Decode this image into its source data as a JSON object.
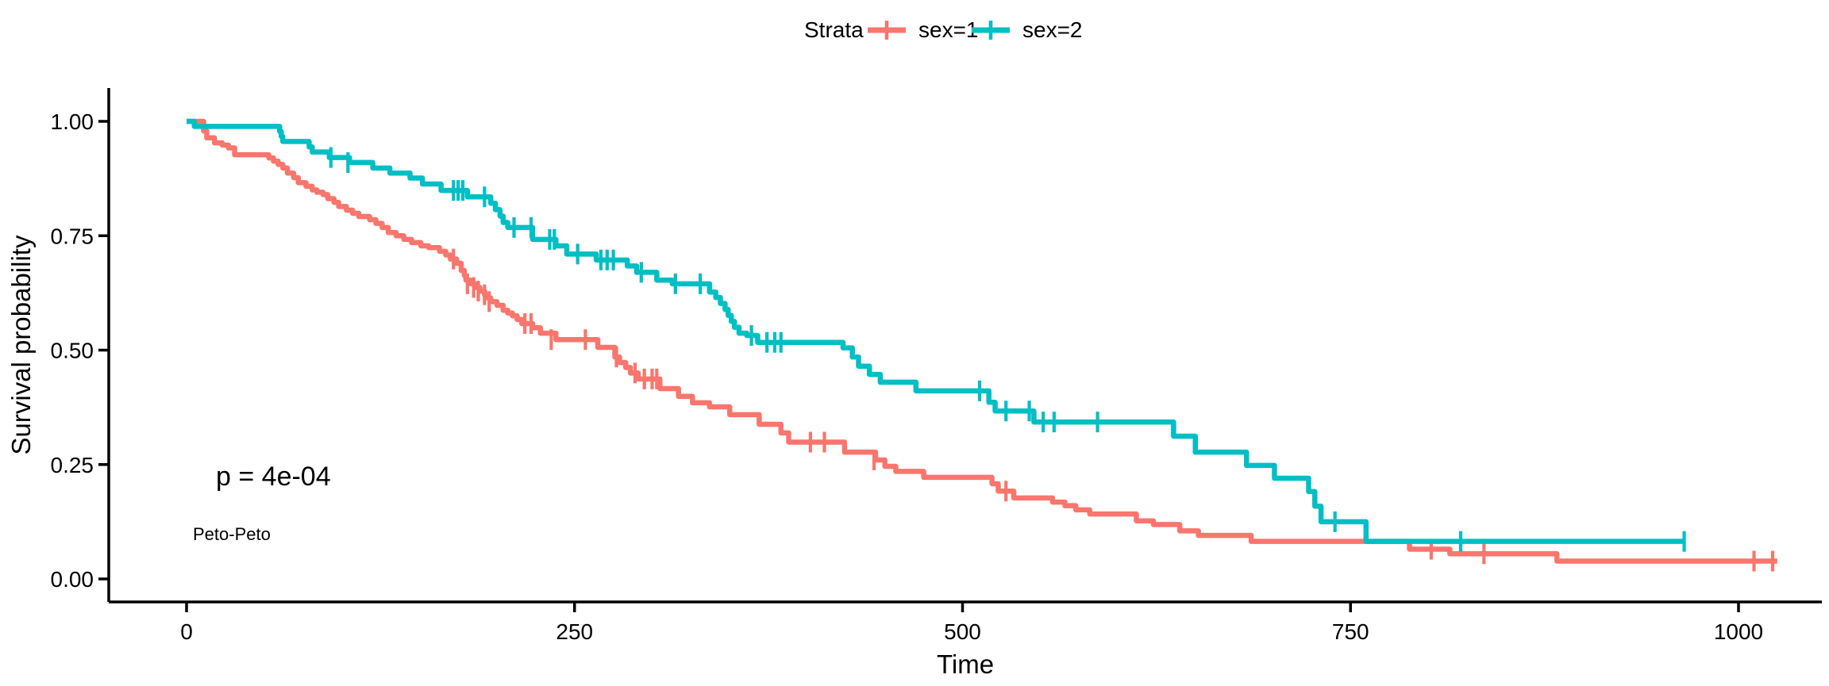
{
  "figure": {
    "legend": {
      "title": "Strata",
      "items": [
        {
          "label": "sex=1",
          "color": "#F8766D"
        },
        {
          "label": "sex=2",
          "color": "#00BFC4"
        }
      ]
    },
    "annotations": {
      "pvalue": "p = 4e-04",
      "method": "Peto-Peto"
    },
    "axes": {
      "x_label": "Time",
      "y_label": "Survival probability"
    }
  },
  "chart_data": {
    "type": "line",
    "subtype": "kaplan_meier_step_function",
    "title": "",
    "xlabel": "Time",
    "ylabel": "Survival probability",
    "xlim": [
      0,
      1060
    ],
    "ylim": [
      0,
      1
    ],
    "x_ticks": [
      0,
      250,
      500,
      750,
      1000
    ],
    "y_ticks": [
      {
        "value": 0.0,
        "label": "0.00"
      },
      {
        "value": 0.25,
        "label": "0.25"
      },
      {
        "value": 0.5,
        "label": "0.50"
      },
      {
        "value": 0.75,
        "label": "0.75"
      },
      {
        "value": 1.0,
        "label": "1.00"
      }
    ],
    "grid": false,
    "legend_position": "top",
    "legend_title": "Strata",
    "pvalue": "p = 4e-04",
    "test_method": "Peto-Peto",
    "axis_color": "#000000",
    "series": [
      {
        "name": "sex=1",
        "color": "#F8766D",
        "end_time": 1025,
        "points": [
          [
            0,
            1.0
          ],
          [
            11,
            0.979
          ],
          [
            13,
            0.964
          ],
          [
            18,
            0.953
          ],
          [
            23,
            0.948
          ],
          [
            27,
            0.942
          ],
          [
            31,
            0.927
          ],
          [
            53,
            0.92
          ],
          [
            56,
            0.913
          ],
          [
            59,
            0.906
          ],
          [
            62,
            0.898
          ],
          [
            65,
            0.887
          ],
          [
            69,
            0.877
          ],
          [
            72,
            0.866
          ],
          [
            77,
            0.858
          ],
          [
            81,
            0.85
          ],
          [
            84,
            0.845
          ],
          [
            88,
            0.84
          ],
          [
            91,
            0.831
          ],
          [
            95,
            0.823
          ],
          [
            98,
            0.814
          ],
          [
            103,
            0.806
          ],
          [
            107,
            0.799
          ],
          [
            111,
            0.792
          ],
          [
            118,
            0.785
          ],
          [
            122,
            0.777
          ],
          [
            126,
            0.768
          ],
          [
            130,
            0.757
          ],
          [
            135,
            0.75
          ],
          [
            140,
            0.742
          ],
          [
            145,
            0.735
          ],
          [
            151,
            0.728
          ],
          [
            156,
            0.724
          ],
          [
            163,
            0.716
          ],
          [
            167,
            0.708
          ],
          [
            170,
            0.699
          ],
          [
            174,
            0.69
          ],
          [
            177,
            0.674
          ],
          [
            179,
            0.663
          ],
          [
            180,
            0.653
          ],
          [
            183,
            0.645
          ],
          [
            186,
            0.637
          ],
          [
            189,
            0.629
          ],
          [
            192,
            0.621
          ],
          [
            194,
            0.614
          ],
          [
            196,
            0.606
          ],
          [
            200,
            0.598
          ],
          [
            204,
            0.587
          ],
          [
            207,
            0.581
          ],
          [
            210,
            0.575
          ],
          [
            213,
            0.567
          ],
          [
            216,
            0.558
          ],
          [
            223,
            0.549
          ],
          [
            228,
            0.537
          ],
          [
            238,
            0.523
          ],
          [
            265,
            0.506
          ],
          [
            276,
            0.485
          ],
          [
            279,
            0.473
          ],
          [
            283,
            0.462
          ],
          [
            286,
            0.45
          ],
          [
            291,
            0.437
          ],
          [
            305,
            0.416
          ],
          [
            317,
            0.399
          ],
          [
            326,
            0.385
          ],
          [
            337,
            0.376
          ],
          [
            350,
            0.359
          ],
          [
            369,
            0.338
          ],
          [
            383,
            0.319
          ],
          [
            388,
            0.299
          ],
          [
            424,
            0.277
          ],
          [
            444,
            0.26
          ],
          [
            450,
            0.246
          ],
          [
            457,
            0.235
          ],
          [
            475,
            0.222
          ],
          [
            519,
            0.208
          ],
          [
            523,
            0.192
          ],
          [
            533,
            0.177
          ],
          [
            558,
            0.168
          ],
          [
            566,
            0.16
          ],
          [
            573,
            0.151
          ],
          [
            582,
            0.142
          ],
          [
            612,
            0.127
          ],
          [
            623,
            0.119
          ],
          [
            640,
            0.105
          ],
          [
            652,
            0.095
          ],
          [
            686,
            0.082
          ],
          [
            788,
            0.065
          ],
          [
            814,
            0.055
          ],
          [
            883,
            0.039
          ]
        ],
        "censored": [
          [
            172,
            0.699
          ],
          [
            181,
            0.645
          ],
          [
            185,
            0.637
          ],
          [
            188,
            0.629
          ],
          [
            192,
            0.621
          ],
          [
            195,
            0.606
          ],
          [
            218,
            0.558
          ],
          [
            222,
            0.558
          ],
          [
            235,
            0.523
          ],
          [
            257,
            0.523
          ],
          [
            277,
            0.485
          ],
          [
            289,
            0.45
          ],
          [
            295,
            0.437
          ],
          [
            300,
            0.437
          ],
          [
            303,
            0.437
          ],
          [
            402,
            0.299
          ],
          [
            411,
            0.299
          ],
          [
            443,
            0.26
          ],
          [
            528,
            0.192
          ],
          [
            802,
            0.065
          ],
          [
            836,
            0.055
          ],
          [
            1010,
            0.039
          ],
          [
            1022,
            0.039
          ]
        ]
      },
      {
        "name": "sex=2",
        "color": "#00BFC4",
        "end_time": 965,
        "points": [
          [
            0,
            1.0
          ],
          [
            5,
            0.989
          ],
          [
            60,
            0.978
          ],
          [
            61,
            0.967
          ],
          [
            62,
            0.956
          ],
          [
            79,
            0.944
          ],
          [
            81,
            0.933
          ],
          [
            92,
            0.921
          ],
          [
            105,
            0.91
          ],
          [
            120,
            0.898
          ],
          [
            131,
            0.887
          ],
          [
            144,
            0.876
          ],
          [
            152,
            0.863
          ],
          [
            164,
            0.849
          ],
          [
            181,
            0.835
          ],
          [
            196,
            0.821
          ],
          [
            199,
            0.807
          ],
          [
            202,
            0.793
          ],
          [
            204,
            0.779
          ],
          [
            207,
            0.768
          ],
          [
            223,
            0.742
          ],
          [
            238,
            0.728
          ],
          [
            245,
            0.71
          ],
          [
            264,
            0.697
          ],
          [
            284,
            0.684
          ],
          [
            290,
            0.67
          ],
          [
            303,
            0.653
          ],
          [
            313,
            0.645
          ],
          [
            337,
            0.627
          ],
          [
            341,
            0.615
          ],
          [
            344,
            0.602
          ],
          [
            347,
            0.589
          ],
          [
            349,
            0.576
          ],
          [
            351,
            0.563
          ],
          [
            353,
            0.55
          ],
          [
            356,
            0.537
          ],
          [
            361,
            0.532
          ],
          [
            368,
            0.517
          ],
          [
            423,
            0.505
          ],
          [
            429,
            0.485
          ],
          [
            433,
            0.465
          ],
          [
            440,
            0.447
          ],
          [
            447,
            0.43
          ],
          [
            470,
            0.411
          ],
          [
            517,
            0.386
          ],
          [
            521,
            0.367
          ],
          [
            546,
            0.343
          ],
          [
            636,
            0.312
          ],
          [
            650,
            0.277
          ],
          [
            683,
            0.248
          ],
          [
            701,
            0.22
          ],
          [
            723,
            0.191
          ],
          [
            727,
            0.159
          ],
          [
            731,
            0.125
          ],
          [
            760,
            0.082
          ]
        ],
        "censored": [
          [
            93,
            0.921
          ],
          [
            104,
            0.91
          ],
          [
            172,
            0.849
          ],
          [
            175,
            0.849
          ],
          [
            178,
            0.849
          ],
          [
            192,
            0.835
          ],
          [
            211,
            0.768
          ],
          [
            222,
            0.768
          ],
          [
            234,
            0.742
          ],
          [
            237,
            0.742
          ],
          [
            252,
            0.71
          ],
          [
            267,
            0.697
          ],
          [
            271,
            0.697
          ],
          [
            275,
            0.697
          ],
          [
            293,
            0.67
          ],
          [
            315,
            0.645
          ],
          [
            331,
            0.645
          ],
          [
            364,
            0.532
          ],
          [
            374,
            0.517
          ],
          [
            379,
            0.517
          ],
          [
            383,
            0.517
          ],
          [
            511,
            0.411
          ],
          [
            528,
            0.367
          ],
          [
            543,
            0.367
          ],
          [
            552,
            0.343
          ],
          [
            559,
            0.343
          ],
          [
            587,
            0.343
          ],
          [
            740,
            0.125
          ],
          [
            821,
            0.082
          ],
          [
            965,
            0.082
          ]
        ]
      }
    ]
  }
}
